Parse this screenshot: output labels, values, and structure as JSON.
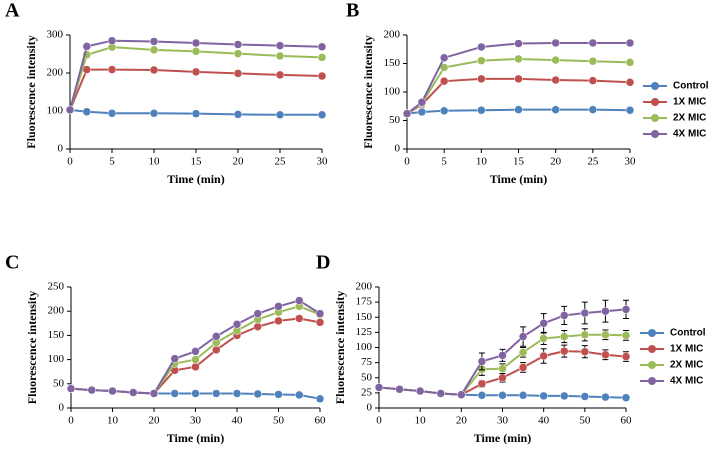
{
  "chart_data": [
    {
      "type": "line",
      "label": "A",
      "xlabel": "Time (min)",
      "ylabel": "Fluorescence intensity",
      "x": [
        0,
        2,
        5,
        10,
        15,
        20,
        25,
        30
      ],
      "xlim": [
        0,
        30
      ],
      "xticks": [
        0,
        5,
        10,
        15,
        20,
        25,
        30
      ],
      "ylim": [
        0,
        300
      ],
      "yticks": [
        0,
        100,
        200,
        300
      ],
      "legend": false,
      "series": [
        {
          "name": "Control",
          "color": "#4f81bd",
          "values": [
            103,
            98,
            94,
            94,
            93,
            91,
            90,
            90
          ]
        },
        {
          "name": "1X MIC",
          "color": "#c0504d",
          "values": [
            103,
            209,
            209,
            208,
            203,
            199,
            195,
            192
          ]
        },
        {
          "name": "2X MIC",
          "color": "#9bbb59",
          "values": [
            103,
            248,
            268,
            261,
            257,
            251,
            245,
            241
          ]
        },
        {
          "name": "4X MIC",
          "color": "#8064a2",
          "values": [
            103,
            270,
            285,
            283,
            279,
            275,
            272,
            269
          ]
        }
      ]
    },
    {
      "type": "line",
      "label": "B",
      "xlabel": "Time (min)",
      "ylabel": "Fluorescence intensity",
      "x": [
        0,
        2,
        5,
        10,
        15,
        20,
        25,
        30
      ],
      "xlim": [
        0,
        30
      ],
      "xticks": [
        0,
        5,
        10,
        15,
        20,
        25,
        30
      ],
      "ylim": [
        0,
        200
      ],
      "yticks": [
        0,
        50,
        100,
        150,
        200
      ],
      "legend": true,
      "series": [
        {
          "name": "Control",
          "color": "#4f81bd",
          "values": [
            62,
            65,
            67,
            68,
            69,
            69,
            69,
            68
          ]
        },
        {
          "name": "1X MIC",
          "color": "#c0504d",
          "values": [
            62,
            78,
            119,
            123,
            123,
            121,
            120,
            117
          ]
        },
        {
          "name": "2X MIC",
          "color": "#9bbb59",
          "values": [
            62,
            80,
            143,
            155,
            158,
            156,
            154,
            152
          ]
        },
        {
          "name": "4X MIC",
          "color": "#8064a2",
          "values": [
            62,
            82,
            160,
            179,
            185,
            186,
            186,
            186
          ]
        }
      ]
    },
    {
      "type": "line",
      "label": "C",
      "xlabel": "Time (min)",
      "ylabel": "Fluorescence intensity",
      "x": [
        0,
        5,
        10,
        15,
        20,
        25,
        30,
        35,
        40,
        45,
        50,
        55,
        60
      ],
      "xlim": [
        0,
        60
      ],
      "xticks": [
        0,
        10,
        20,
        30,
        40,
        50,
        60
      ],
      "ylim": [
        0,
        250
      ],
      "yticks": [
        0,
        50,
        100,
        150,
        200,
        250
      ],
      "legend": false,
      "series": [
        {
          "name": "Control",
          "color": "#4f81bd",
          "values": [
            40,
            37,
            35,
            32,
            30,
            30,
            30,
            30,
            30,
            29,
            28,
            27,
            19
          ]
        },
        {
          "name": "1X MIC",
          "color": "#c0504d",
          "values": [
            40,
            37,
            35,
            32,
            30,
            78,
            85,
            120,
            150,
            168,
            180,
            185,
            177
          ]
        },
        {
          "name": "2X MIC",
          "color": "#9bbb59",
          "values": [
            40,
            37,
            35,
            32,
            30,
            92,
            100,
            135,
            160,
            183,
            198,
            210,
            193
          ]
        },
        {
          "name": "4X MIC",
          "color": "#8064a2",
          "values": [
            40,
            37,
            35,
            32,
            30,
            102,
            117,
            148,
            173,
            195,
            210,
            222,
            195
          ]
        }
      ]
    },
    {
      "type": "line",
      "label": "D",
      "xlabel": "Time (min)",
      "ylabel": "Fluorescence intensity",
      "x": [
        0,
        5,
        10,
        15,
        20,
        25,
        30,
        35,
        40,
        45,
        50,
        55,
        60
      ],
      "xlim": [
        0,
        60
      ],
      "xticks": [
        0,
        10,
        20,
        30,
        40,
        50,
        60
      ],
      "ylim": [
        0,
        200
      ],
      "yticks": [
        0,
        25,
        50,
        75,
        100,
        125,
        150,
        175,
        200
      ],
      "legend": true,
      "series": [
        {
          "name": "Control",
          "color": "#4f81bd",
          "values": [
            34,
            31,
            28,
            24,
            22,
            21,
            21,
            21,
            20,
            20,
            19,
            18,
            17
          ],
          "errors": [
            2,
            2,
            2,
            2,
            2,
            2,
            2,
            2,
            2,
            2,
            2,
            2,
            2
          ]
        },
        {
          "name": "1X MIC",
          "color": "#c0504d",
          "values": [
            34,
            31,
            28,
            24,
            22,
            40,
            50,
            67,
            86,
            94,
            93,
            88,
            85
          ],
          "errors": [
            2,
            2,
            2,
            2,
            2,
            5,
            7,
            8,
            12,
            10,
            10,
            8,
            8
          ]
        },
        {
          "name": "2X MIC",
          "color": "#9bbb59",
          "values": [
            34,
            31,
            28,
            24,
            22,
            64,
            65,
            92,
            115,
            118,
            121,
            121,
            120
          ],
          "errors": [
            2,
            2,
            2,
            2,
            2,
            10,
            8,
            8,
            10,
            10,
            10,
            8,
            8
          ]
        },
        {
          "name": "4X MIC",
          "color": "#8064a2",
          "values": [
            34,
            31,
            28,
            24,
            22,
            77,
            87,
            118,
            140,
            153,
            157,
            160,
            163
          ],
          "errors": [
            2,
            2,
            2,
            2,
            2,
            14,
            10,
            16,
            16,
            15,
            18,
            18,
            15
          ]
        }
      ]
    }
  ]
}
